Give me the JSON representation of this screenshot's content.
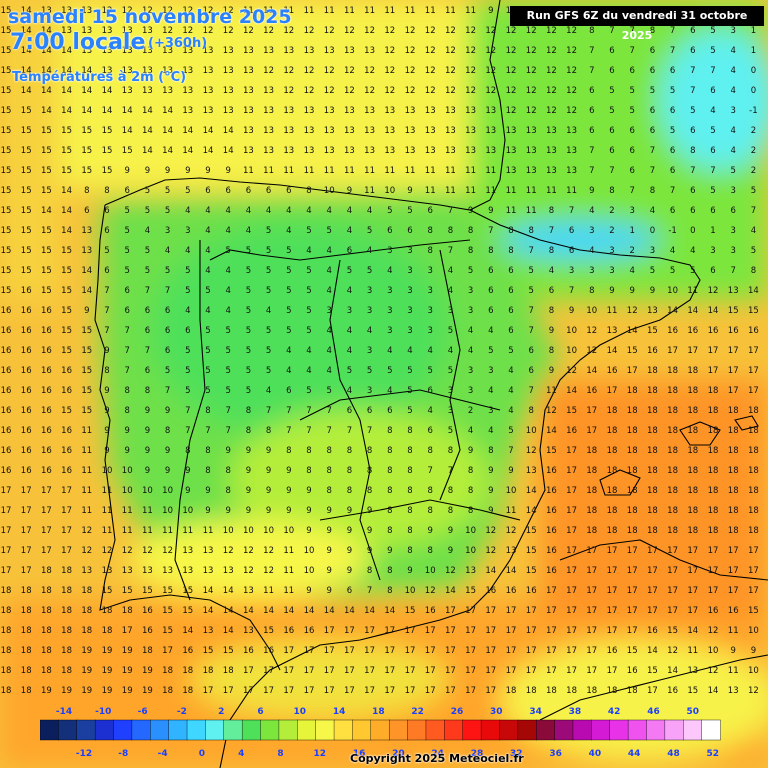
{
  "header": {
    "date_label": "samedi 15 novembre 2025",
    "time_label": "7:00 locale",
    "hours_label": "(+360h)",
    "variable_label": "Températures à 2m (°C)"
  },
  "run_label": "Run GFS 6Z du vendredi 31 octobre 2025",
  "copyright": "Copyright 2025 Meteociel.fr",
  "legend": {
    "top_ticks": [
      "-14",
      "-10",
      "-6",
      "-2",
      "2",
      "6",
      "10",
      "14",
      "18",
      "22",
      "26",
      "30",
      "34",
      "38",
      "42",
      "46",
      "50"
    ],
    "bottom_ticks": [
      "-12",
      "-8",
      "-4",
      "0",
      "4",
      "8",
      "12",
      "16",
      "20",
      "24",
      "28",
      "32",
      "36",
      "40",
      "44",
      "48",
      "52"
    ],
    "colors": [
      "#0a1f5c",
      "#14307a",
      "#1a3fa0",
      "#1c2fd0",
      "#2040ff",
      "#2468ff",
      "#2a90ff",
      "#30b4ff",
      "#3fd6ff",
      "#5ff0f0",
      "#62ee9a",
      "#4fe05a",
      "#7ce63c",
      "#b4ee3a",
      "#e6f43a",
      "#f7f74a",
      "#ffe040",
      "#ffc830",
      "#ffac28",
      "#ff9428",
      "#ff7a24",
      "#ff5a20",
      "#ff3a1c",
      "#ff1414",
      "#e80a0a",
      "#c80808",
      "#a50606",
      "#8a0a3a",
      "#9c0a7a",
      "#b80ab0",
      "#d41ad4",
      "#e832e8",
      "#f052f0",
      "#f47af4",
      "#f8a2f8",
      "#fcc8fc",
      "#ffffff"
    ]
  },
  "grid": {
    "rows": [
      "15 14 13 13 13 12 12 12 12 12 12 12 11 11 11 11 11 11 11 11 11 11 11 11 9",
      "15 14 14 13 13 13 13 13 12 12 12 12 12 12 12 12 12 12 12 12 12 12 12 12 12",
      "15 14 14 14 13 13 13 13 13 13 13 13 13 13 13 13 13 13 13 12 12 12 12 12 12",
      "15 14 14 14 14 13 13 13 13 13 13 13 13 12 12 12 12 12 12 12 12 12 12 12 12",
      "15 14 14 14 14 14 13 13 13 13 13 13 13 13 12 12 12 12 12 12 12 12 12 12 12",
      "15 15 14 14 14 14 14 14 14 13 13 13 13 13 13 13 13 13 13 13 13 13 13 13 13",
      "15 15 15 15 15 15 14 14 14 14 14 14 13 13 13 13 13 13 13 13 13 13 13 13 13",
      "15 15 15 15 15 15 15 14 14 14 14 14 13 13 13 13 13 13 13 13 13 13 13 13 13",
      "15 15 15 15 15 15 9 9 9 9 9 9 11 11 11 11 11 11 11 11 11 11 11 11 11",
      "15 15 15 14 8 8 6 5 5 5 6 6 6 6 6 8 10 9 11 10 9 11 11 11 11",
      "15 15 14 14 6 6 5 5 5 4 4 4 4 4 4 4 4 4 4 5 5 6 7 9 9",
      "15 15 15 14 13 6 5 4 3 3 4 4 4 5 4 5 5 4 5 6 6 8 8 8 7",
      "15 15 15 15 13 5 5 5 4 4 4 5 5 5 5 4 4 6 4 3 3 8 7 8 8",
      "15 15 15 15 14 6 5 5 5 5 4 4 5 5 5 5 4 5 5 4 3 3 4 5 6",
      "15 16 15 15 14 7 6 7 7 5 5 4 5 5 5 5 4 4 3 3 3 3 4 3 6",
      "16 16 16 15 9 7 6 6 6 4 4 4 5 4 5 5 3 3 3 3 3 3 3 3 6",
      "16 16 16 15 15 7 7 6 6 6 5 5 5 5 5 5 4 4 4 3 3 3 5 4 4",
      "16 16 16 15 15 9 7 7 6 5 5 5 5 5 4 4 4 4 3 4 4 4 4 4 5",
      "16 16 16 16 15 8 7 6 5 5 5 5 5 5 4 4 4 5 5 5 5 5 5 3 3",
      "16 16 16 16 15 9 8 8 7 5 5 5 5 4 6 5 5 4 3 4 5 6 3 3 4",
      "16 16 16 15 15 9 8 9 9 7 8 7 8 7 7 7 7 6 6 6 5 4 3 2 3",
      "16 16 16 16 11 9 9 9 8 7 7 7 8 8 7 7 7 7 7 8 8 6 5 4 4",
      "16 16 16 16 11 9 9 9 9 8 8 9 9 9 8 8 8 8 8 8 8 8 8 9 8",
      "16 16 16 16 11 10 10 9 9 9 8 8 9 9 9 8 8 8 8 8 8 7 7 8 9",
      "17 17 17 17 11 11 10 10 10 9 9 8 9 9 9 9 8 8 8 8 8 8 8 8 9",
      "17 17 17 17 11 11 11 11 10 10 9 9 9 9 9 9 9 9 9 8 8 8 8 8 9",
      "17 17 17 17 12 11 11 11 11 11 11 10 10 10 10 9 9 9 9 8 8 9 9 10 12",
      "17 17 17 17 12 12 12 12 12 13 13 12 12 12 11 10 9 9 9 9 8 8 9 10 12",
      "17 17 18 18 13 13 13 13 13 13 13 13 12 12 11 10 9 9 8 8 9 10 12 13 14",
      "18 18 18 18 18 15 15 15 15 15 14 14 13 11 11 9 9 6 7 8 10 12 14 15 16",
      "18 18 18 18 18 18 18 16 15 15 14 14 14 14 14 14 14 14 14 14 15 16 17 17 17",
      "18 18 18 18 18 18 17 16 15 14 13 14 13 15 16 16 17 17 17 17 17 17 17 17 17",
      "18 18 18 18 19 19 19 18 17 16 15 15 16 16 17 17 17 17 17 17 17 17 17 17 17",
      "18 18 18 18 19 19 19 19 18 18 18 18 17 17 17 17 17 17 17 17 17 17 17 17 17",
      "18 18 19 19 19 19 19 19 18 18 17 17 17 17 17 17 17 17 17 17 17 17 17 17 17",
      "19 19 19 19 19 19 19 19 19 19 19 19 19 19 19 19 19 19 19 19 19 19 19 19 19",
      "19 19 19 19 19 19 19 19 19 19 19 19 19 19 19 19 19 19 19 19 19 19 19 19 19"
    ],
    "east_rows": [
      "11 11 11 11 12 12 12 12 12 12 12 12 12 12",
      "12 12 12 12 8 7 7 8 7 6 5 3 1 4",
      "12 12 12 12 7 6 7 6 7 6 5 4 1 2",
      "12 12 12 12 7 6 6 6 6 7 7 4 0 2",
      "12 12 12 12 6 5 5 5 5 7 6 4 0 -1",
      "12 12 12 12 6 5 5 6 6 5 4 3 -1 -1",
      "13 13 13 13 6 6 6 6 5 6 5 4 2 -1",
      "13 13 13 13 7 6 6 7 6 8 6 4 2 1",
      "13 13 13 13 7 7 6 7 6 7 7 5 2 2",
      "11 11 11 11 9 8 7 8 7 6 5 3 5 6",
      "11 11 8 7 4 2 3 4 6 6 6 6 7 8",
      "8 8 7 6 3 2 1 0 -1 0 1 3 4 6",
      "8 7 8 6 4 3 2 3 4 4 3 3 5 8",
      "6 5 4 3 3 3 4 5 5 5 6 7 8 10",
      "6 5 6 7 8 9 9 9 10 11 12 13 14 14",
      "6 7 8 9 10 11 12 13 14 14 14 15 15 15",
      "6 7 9 10 12 13 14 15 16 16 16 16 16 16",
      "5 6 8 10 12 14 15 16 17 17 17 17 17 17",
      "4 6 9 12 14 16 17 18 18 18 17 17 17 17",
      "4 7 11 14 16 17 18 18 18 18 18 17 17 17",
      "4 8 12 15 17 18 18 18 18 18 18 18 18 18",
      "5 10 14 16 17 18 18 18 18 18 18 18 18 18",
      "7 12 15 17 18 18 18 18 18 18 18 18 18 18",
      "9 13 16 17 18 18 18 18 18 18 18 18 18 18",
      "10 14 16 17 18 18 18 18 18 18 18 18 18 18",
      "11 14 16 17 18 18 18 18 18 18 18 18 18 18",
      "12 15 16 17 18 18 18 18 18 18 18 18 18 18",
      "13 15 16 17 17 17 17 17 17 17 17 17 17 17",
      "14 15 16 17 17 17 17 17 17 17 17 17 17 17",
      "16 16 17 17 17 17 17 17 17 17 17 17 17 17",
      "17 17 17 17 17 17 17 17 17 17 16 16 15 14",
      "17 17 17 17 17 17 17 16 15 14 12 11 10 9",
      "17 17 17 17 17 16 15 14 12 11 10 9 9 9",
      "17 17 17 17 17 17 16 15 14 13 12 11 10 10",
      "18 18 18 18 18 18 18 17 16 15 14 13 12 12",
      "19 19 19 19 19 18 18 17 16 15 14 14 14 14",
      "19 19 19 19 19 19 19 19 19 19 19 19 19 19"
    ]
  }
}
